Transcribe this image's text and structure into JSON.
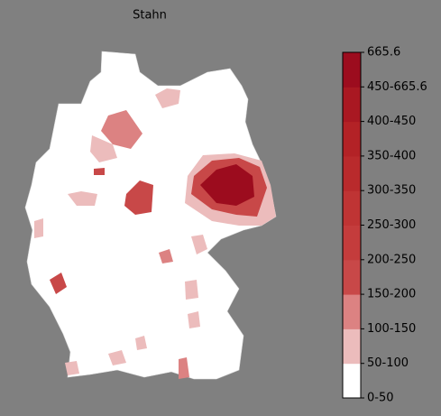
{
  "title": "Stahn",
  "colorbar": {
    "labels": [
      "0-50",
      "50-100",
      "100-150",
      "150-200",
      "200-250",
      "250-300",
      "300-350",
      "350-400",
      "400-450",
      "450-665.6",
      "665.6"
    ],
    "colors": [
      "#ffffff",
      "#ecbcbc",
      "#dc8282",
      "#c84848",
      "#c43c3c",
      "#bf3434",
      "#b92a2c",
      "#b32226",
      "#a91822",
      "#9c0c1e"
    ]
  }
}
